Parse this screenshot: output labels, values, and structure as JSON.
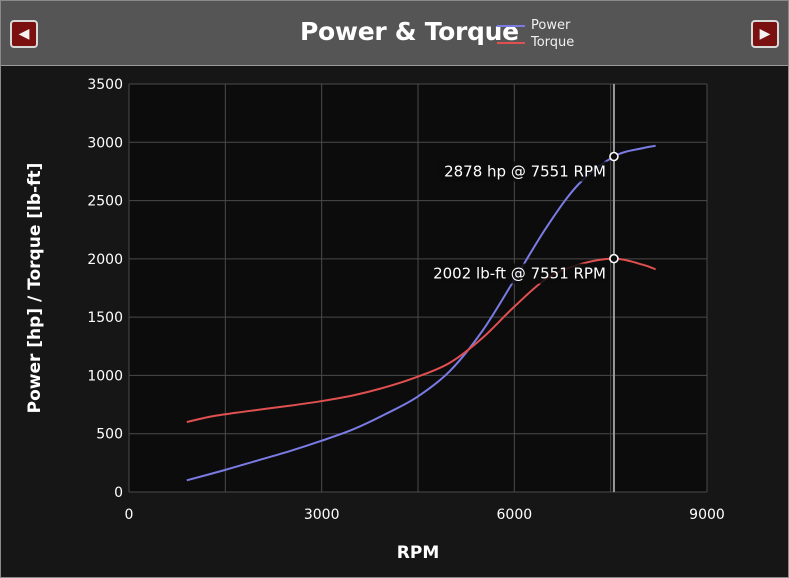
{
  "nav": {
    "prev_icon": "◀",
    "next_icon": "▶"
  },
  "chart_data": {
    "type": "line",
    "title": "Power & Torque",
    "xlabel": "RPM",
    "ylabel": "Power [hp] / Torque [lb-ft]",
    "xlim": [
      0,
      9000
    ],
    "ylim": [
      0,
      3500
    ],
    "x_ticks": [
      "0",
      "3000",
      "6000",
      "9000"
    ],
    "y_ticks": [
      "0",
      "500",
      "1000",
      "1500",
      "2000",
      "2500",
      "3000",
      "3500"
    ],
    "grid": true,
    "legend_position": "top",
    "series": [
      {
        "name": "Power",
        "color": "#7b7be6",
        "points": [
          [
            900,
            100
          ],
          [
            1500,
            190
          ],
          [
            2000,
            270
          ],
          [
            2500,
            350
          ],
          [
            3000,
            440
          ],
          [
            3500,
            540
          ],
          [
            4000,
            670
          ],
          [
            4500,
            820
          ],
          [
            5000,
            1040
          ],
          [
            5500,
            1380
          ],
          [
            6000,
            1820
          ],
          [
            6500,
            2270
          ],
          [
            7000,
            2640
          ],
          [
            7551,
            2878
          ],
          [
            8000,
            2950
          ],
          [
            8200,
            2970
          ]
        ]
      },
      {
        "name": "Torque",
        "color": "#e05050",
        "points": [
          [
            900,
            600
          ],
          [
            1300,
            650
          ],
          [
            1800,
            690
          ],
          [
            2500,
            740
          ],
          [
            3000,
            780
          ],
          [
            3500,
            830
          ],
          [
            4000,
            900
          ],
          [
            4500,
            990
          ],
          [
            5000,
            1110
          ],
          [
            5500,
            1320
          ],
          [
            6000,
            1590
          ],
          [
            6500,
            1830
          ],
          [
            7000,
            1950
          ],
          [
            7551,
            2002
          ],
          [
            8000,
            1950
          ],
          [
            8200,
            1910
          ]
        ]
      }
    ],
    "cursor_rpm": 7551,
    "annotations": [
      {
        "text": "2878 hp @ 7551 RPM",
        "x": 7551,
        "y": 2878
      },
      {
        "text": "2002 lb-ft @ 7551 RPM",
        "x": 7551,
        "y": 2002
      }
    ]
  }
}
